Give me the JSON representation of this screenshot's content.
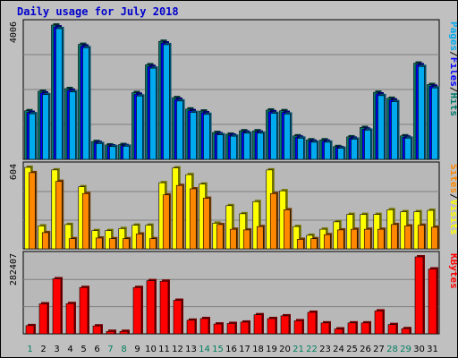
{
  "title": "Daily usage for July 2018",
  "colors": {
    "background": "#c0c0c0",
    "panel": "#b8b8b8",
    "grid": "#808080",
    "title": "#0000cc",
    "hits": "#007b6e",
    "files": "#0000ff",
    "pages": "#00aaee",
    "visits": "#ffff00",
    "sites": "#ff8800",
    "kbytes": "#ff0000",
    "weekday_label": "#000000",
    "weekend_label": "#008060"
  },
  "chart_data": [
    {
      "type": "bar",
      "categories": [
        "1",
        "2",
        "3",
        "4",
        "5",
        "6",
        "7",
        "8",
        "9",
        "10",
        "11",
        "12",
        "13",
        "14",
        "15",
        "16",
        "17",
        "18",
        "19",
        "20",
        "21",
        "22",
        "23",
        "24",
        "25",
        "26",
        "27",
        "28",
        "29",
        "30",
        "31"
      ],
      "weekend": [
        1,
        7,
        8,
        14,
        15,
        21,
        22,
        28,
        29
      ],
      "series": [
        {
          "name": "Hits",
          "values": [
            1450,
            2030,
            4006,
            2110,
            3430,
            530,
            430,
            440,
            1990,
            2820,
            3520,
            1840,
            1500,
            1440,
            800,
            750,
            850,
            850,
            1470,
            1450,
            700,
            580,
            580,
            380,
            670,
            950,
            2000,
            1820,
            700,
            2870,
            2230
          ]
        },
        {
          "name": "Files",
          "values": [
            1400,
            1980,
            3950,
            2060,
            3380,
            500,
            400,
            410,
            1940,
            2770,
            3470,
            1790,
            1450,
            1390,
            760,
            720,
            810,
            810,
            1420,
            1400,
            660,
            540,
            540,
            350,
            630,
            900,
            1950,
            1770,
            660,
            2820,
            2180
          ]
        },
        {
          "name": "Pages",
          "values": [
            1360,
            1930,
            3900,
            2010,
            3330,
            470,
            380,
            390,
            1890,
            2720,
            3420,
            1740,
            1400,
            1340,
            730,
            690,
            780,
            780,
            1370,
            1350,
            630,
            510,
            510,
            330,
            600,
            870,
            1900,
            1720,
            630,
            2770,
            2130
          ]
        }
      ],
      "ymax_label": "4006",
      "ylim": [
        0,
        4006
      ],
      "legend": [
        "Pages",
        "/",
        "Files",
        "/",
        "Hits"
      ]
    },
    {
      "type": "bar",
      "categories": [
        "1",
        "2",
        "3",
        "4",
        "5",
        "6",
        "7",
        "8",
        "9",
        "10",
        "11",
        "12",
        "13",
        "14",
        "15",
        "16",
        "17",
        "18",
        "19",
        "20",
        "21",
        "22",
        "23",
        "24",
        "25",
        "26",
        "27",
        "28",
        "29",
        "30",
        "31"
      ],
      "series": [
        {
          "name": "Visits",
          "values": [
            604,
            170,
            585,
            180,
            460,
            135,
            135,
            150,
            175,
            175,
            490,
            600,
            550,
            480,
            190,
            320,
            260,
            350,
            585,
            430,
            165,
            100,
            145,
            200,
            255,
            255,
            255,
            290,
            275,
            275,
            285
          ]
        },
        {
          "name": "Sites",
          "values": [
            565,
            120,
            500,
            75,
            410,
            80,
            75,
            75,
            110,
            75,
            400,
            470,
            445,
            375,
            180,
            145,
            140,
            165,
            410,
            290,
            70,
            75,
            105,
            140,
            145,
            145,
            145,
            180,
            170,
            175,
            160
          ]
        }
      ],
      "ymax_label": "604",
      "ylim": [
        0,
        604
      ],
      "legend": [
        "Sites",
        "/",
        "Visits"
      ]
    },
    {
      "type": "bar",
      "categories": [
        "1",
        "2",
        "3",
        "4",
        "5",
        "6",
        "7",
        "8",
        "9",
        "10",
        "11",
        "12",
        "13",
        "14",
        "15",
        "16",
        "17",
        "18",
        "19",
        "20",
        "21",
        "22",
        "23",
        "24",
        "25",
        "26",
        "27",
        "28",
        "29",
        "30",
        "31"
      ],
      "series": [
        {
          "name": "KBytes",
          "values": [
            30000,
            110000,
            202000,
            111000,
            170000,
            29000,
            9000,
            9000,
            170000,
            195000,
            193000,
            123000,
            50000,
            56000,
            36000,
            38000,
            43000,
            70000,
            56000,
            66000,
            48000,
            79000,
            40000,
            18000,
            40000,
            40000,
            84000,
            34000,
            19000,
            282407,
            238000
          ]
        }
      ],
      "ymax_label": "282407",
      "ylim": [
        0,
        282407
      ],
      "legend": [
        "KBytes"
      ]
    }
  ]
}
